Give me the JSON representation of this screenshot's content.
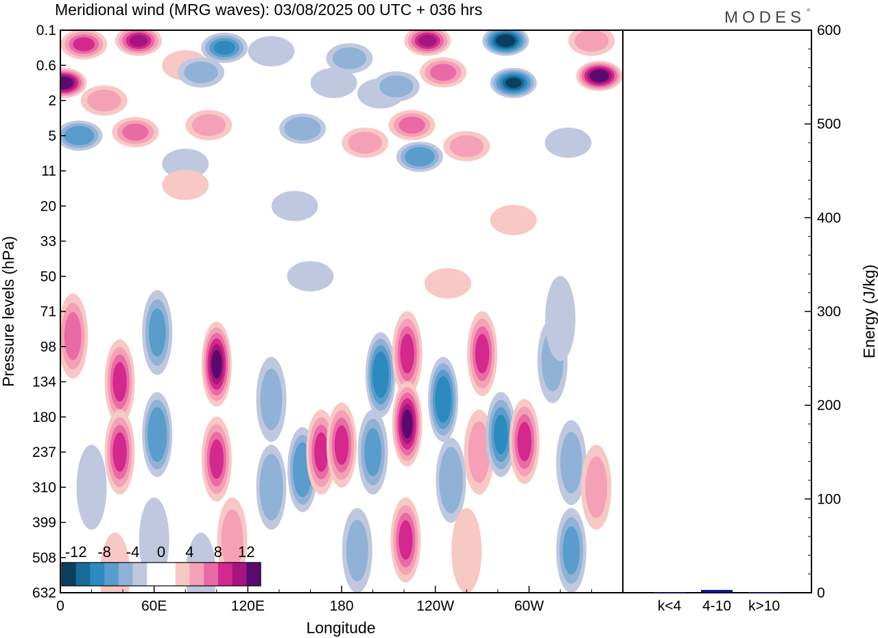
{
  "header": {
    "title": "Meridional wind (MRG waves):  03/08/2025  00 UTC  + 036 hrs",
    "brand": "MODES",
    "brand_mark": "°"
  },
  "chart_data": [
    {
      "type": "heatmap",
      "title": "Meridional wind (MRG waves):  03/08/2025  00 UTC  + 036 hrs",
      "xlabel": "Longitude",
      "ylabel": "Pressure levels (hPa)",
      "x_ticks": [
        "0",
        "60E",
        "120E",
        "180",
        "120W",
        "60W"
      ],
      "y_ticks": [
        "0.1",
        "0.6",
        "2",
        "5",
        "11",
        "20",
        "33",
        "50",
        "71",
        "98",
        "134",
        "180",
        "237",
        "310",
        "399",
        "508",
        "632"
      ],
      "colorbar": {
        "labels": [
          "-12",
          "-8",
          "-4",
          "0",
          "4",
          "8",
          "12"
        ],
        "levels": [
          -14,
          -12,
          -10,
          -8,
          -6,
          -4,
          -2,
          0,
          2,
          4,
          6,
          8,
          10,
          12,
          14
        ],
        "colors": [
          "#0b3f5e",
          "#176b96",
          "#2d8abf",
          "#5a9ccb",
          "#8fb2d6",
          "#c0c8e0",
          "#ffffff",
          "#ffffff",
          "#f8c8c4",
          "#f4a0b6",
          "#ea6aa6",
          "#d4288c",
          "#a4167e",
          "#5a0a6e"
        ]
      },
      "cells": [
        {
          "lon": 50,
          "lev": 0.3,
          "v": 11
        },
        {
          "lon": 15,
          "lev": 0.4,
          "v": 8
        },
        {
          "lon": 2,
          "lev": 1.5,
          "v": 14
        },
        {
          "lon": 28,
          "lev": 2.0,
          "v": 5
        },
        {
          "lon": 95,
          "lev": 2.7,
          "v": 5
        },
        {
          "lon": 48,
          "lev": 2.9,
          "v": 7
        },
        {
          "lon": 12,
          "lev": 3.0,
          "v": -8
        },
        {
          "lon": 80,
          "lev": 1.0,
          "v": 3
        },
        {
          "lon": 105,
          "lev": 0.5,
          "v": -9
        },
        {
          "lon": 90,
          "lev": 1.2,
          "v": -5
        },
        {
          "lon": 185,
          "lev": 0.8,
          "v": -5
        },
        {
          "lon": 175,
          "lev": 1.5,
          "v": -4
        },
        {
          "lon": 155,
          "lev": 2.8,
          "v": -6
        },
        {
          "lon": 205,
          "lev": 1.8,
          "v": -3
        },
        {
          "lon": 135,
          "lev": 0.6,
          "v": -4
        },
        {
          "lon": 80,
          "lev": 3.8,
          "v": -3
        },
        {
          "lon": 235,
          "lev": 0.3,
          "v": 10
        },
        {
          "lon": 245,
          "lev": 1.2,
          "v": 7
        },
        {
          "lon": 285,
          "lev": 0.3,
          "v": -14
        },
        {
          "lon": 290,
          "lev": 1.5,
          "v": -13
        },
        {
          "lon": 345,
          "lev": 1.3,
          "v": 14
        },
        {
          "lon": 340,
          "lev": 0.3,
          "v": 4
        },
        {
          "lon": 195,
          "lev": 3.2,
          "v": 5
        },
        {
          "lon": 225,
          "lev": 2.7,
          "v": 6
        },
        {
          "lon": 230,
          "lev": 3.6,
          "v": -8
        },
        {
          "lon": 260,
          "lev": 3.3,
          "v": 5
        },
        {
          "lon": 215,
          "lev": 1.6,
          "v": -5
        },
        {
          "lon": 325,
          "lev": 3.2,
          "v": -3
        },
        {
          "lon": 80,
          "lev": 4.4,
          "v": 3
        },
        {
          "lon": 290,
          "lev": 5.4,
          "v": 3
        },
        {
          "lon": 150,
          "lev": 5.0,
          "v": -3
        },
        {
          "lon": 248,
          "lev": 7.2,
          "v": 3
        },
        {
          "lon": 160,
          "lev": 7.0,
          "v": -3
        },
        {
          "lon": 8,
          "lev": 8.7,
          "v": 7
        },
        {
          "lon": 38,
          "lev": 10.0,
          "v": 9
        },
        {
          "lon": 38,
          "lev": 12.0,
          "v": 8
        },
        {
          "lon": 62,
          "lev": 8.6,
          "v": -7
        },
        {
          "lon": 62,
          "lev": 11.5,
          "v": -8
        },
        {
          "lon": 100,
          "lev": 9.5,
          "v": 12
        },
        {
          "lon": 100,
          "lev": 12.2,
          "v": 9
        },
        {
          "lon": 135,
          "lev": 10.5,
          "v": -5
        },
        {
          "lon": 135,
          "lev": 13.0,
          "v": -6
        },
        {
          "lon": 155,
          "lev": 12.5,
          "v": -8
        },
        {
          "lon": 167,
          "lev": 12.0,
          "v": 8
        },
        {
          "lon": 180,
          "lev": 11.8,
          "v": 9
        },
        {
          "lon": 205,
          "lev": 9.8,
          "v": -10
        },
        {
          "lon": 200,
          "lev": 12.0,
          "v": -7
        },
        {
          "lon": 222,
          "lev": 9.2,
          "v": 9
        },
        {
          "lon": 222,
          "lev": 11.2,
          "v": 12
        },
        {
          "lon": 221,
          "lev": 14.5,
          "v": 9
        },
        {
          "lon": 245,
          "lev": 10.5,
          "v": -10
        },
        {
          "lon": 250,
          "lev": 12.8,
          "v": -6
        },
        {
          "lon": 270,
          "lev": 9.2,
          "v": 9
        },
        {
          "lon": 268,
          "lev": 12.0,
          "v": 5
        },
        {
          "lon": 282,
          "lev": 11.5,
          "v": -9
        },
        {
          "lon": 297,
          "lev": 11.7,
          "v": 8
        },
        {
          "lon": 315,
          "lev": 9.4,
          "v": -5
        },
        {
          "lon": 327,
          "lev": 12.3,
          "v": -5
        },
        {
          "lon": 327,
          "lev": 14.8,
          "v": -7
        },
        {
          "lon": 343,
          "lev": 13.0,
          "v": 5
        },
        {
          "lon": 20,
          "lev": 13.0,
          "v": -4
        },
        {
          "lon": 320,
          "lev": 8.2,
          "v": -3
        },
        {
          "lon": 110,
          "lev": 14.5,
          "v": 5
        },
        {
          "lon": 60,
          "lev": 14.5,
          "v": -4
        },
        {
          "lon": 260,
          "lev": 14.8,
          "v": 3
        },
        {
          "lon": 190,
          "lev": 14.8,
          "v": -5
        },
        {
          "lon": 90,
          "lev": 15.5,
          "v": -3
        },
        {
          "lon": 35,
          "lev": 15.5,
          "v": 3
        }
      ]
    },
    {
      "type": "bar",
      "categories": [
        "k<4",
        "4-10",
        "k>10"
      ],
      "values": [
        0.5,
        3,
        0.5
      ],
      "ylabel": "Energy (J/kg)",
      "ylim": [
        0,
        600
      ],
      "y_ticks": [
        "0",
        "100",
        "200",
        "300",
        "400",
        "500",
        "600"
      ],
      "bar_color": "#14148c"
    }
  ]
}
